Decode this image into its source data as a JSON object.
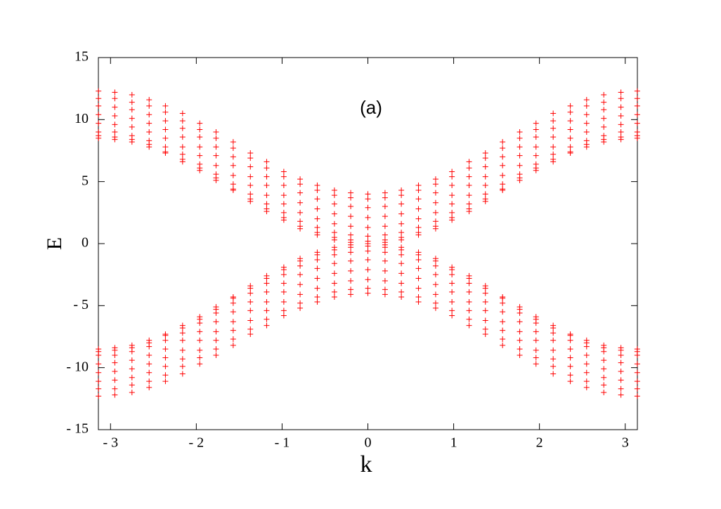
{
  "chart_data": {
    "type": "scatter",
    "annotation": "(a)",
    "xlabel": "k",
    "ylabel": "E",
    "xlim": [
      -3.14159,
      3.14159
    ],
    "ylim": [
      -15,
      15
    ],
    "xticks": [
      {
        "value": -3,
        "label": "- 3"
      },
      {
        "value": -2,
        "label": "- 2"
      },
      {
        "value": -1,
        "label": "- 1"
      },
      0,
      1,
      2,
      3
    ],
    "yticks": [
      {
        "value": -15,
        "label": "- 15"
      },
      {
        "value": -10,
        "label": "- 10"
      },
      {
        "value": -5,
        "label": "- 5"
      },
      0,
      5,
      10,
      15
    ],
    "x": [
      -3.14,
      -2.95,
      -2.75,
      -2.55,
      -2.36,
      -2.16,
      -1.96,
      -1.77,
      -1.57,
      -1.37,
      -1.18,
      -0.98,
      -0.79,
      -0.59,
      -0.39,
      -0.2,
      0,
      0.2,
      0.39,
      0.59,
      0.79,
      0.98,
      1.18,
      1.37,
      1.57,
      1.77,
      1.96,
      2.16,
      2.36,
      2.55,
      2.75,
      2.95,
      3.14
    ],
    "series": [
      {
        "color": "#ff0000",
        "values": [
          8.5,
          8.4,
          8.2,
          7.8,
          7.3,
          6.6,
          5.9,
          5.1,
          4.3,
          3.4,
          2.6,
          1.9,
          1.2,
          0.7,
          0.3,
          0.1,
          0,
          0.1,
          0.3,
          0.7,
          1.2,
          1.9,
          2.6,
          3.4,
          4.3,
          5.1,
          5.9,
          6.6,
          7.3,
          7.8,
          8.2,
          8.4,
          8.5
        ]
      },
      {
        "color": "#ff0000",
        "values": [
          8.7,
          8.6,
          8.4,
          8.0,
          7.4,
          6.8,
          6.1,
          5.3,
          4.4,
          3.6,
          2.8,
          2.1,
          1.4,
          0.9,
          0.5,
          0.3,
          0.2,
          0.3,
          0.5,
          0.9,
          1.4,
          2.1,
          2.8,
          3.6,
          4.4,
          5.3,
          6.1,
          6.8,
          7.4,
          8.0,
          8.4,
          8.6,
          8.7
        ]
      },
      {
        "color": "#ff0000",
        "values": [
          9.0,
          9.0,
          8.7,
          8.3,
          7.8,
          7.2,
          6.4,
          5.6,
          4.8,
          4.0,
          3.2,
          2.5,
          1.8,
          1.3,
          0.9,
          0.7,
          0.6,
          0.7,
          0.9,
          1.3,
          1.8,
          2.5,
          3.2,
          4.0,
          4.8,
          5.6,
          6.4,
          7.2,
          7.8,
          8.3,
          8.7,
          9.0,
          9.0
        ]
      },
      {
        "color": "#ff0000",
        "values": [
          9.7,
          9.6,
          9.4,
          9.0,
          8.5,
          7.8,
          7.1,
          6.3,
          5.5,
          4.7,
          3.9,
          3.2,
          2.5,
          2.0,
          1.6,
          1.4,
          1.3,
          1.4,
          1.6,
          2.0,
          2.5,
          3.2,
          3.9,
          4.7,
          5.5,
          6.3,
          7.1,
          7.8,
          8.5,
          9.0,
          9.4,
          9.6,
          9.7
        ]
      },
      {
        "color": "#ff0000",
        "values": [
          10.4,
          10.3,
          10.1,
          9.7,
          9.2,
          8.6,
          7.8,
          7.1,
          6.3,
          5.4,
          4.7,
          3.9,
          3.3,
          2.8,
          2.4,
          2.2,
          2.1,
          2.2,
          2.4,
          2.8,
          3.3,
          3.9,
          4.7,
          5.4,
          6.3,
          7.1,
          7.8,
          8.6,
          9.2,
          9.7,
          10.1,
          10.3,
          10.4
        ]
      },
      {
        "color": "#ff0000",
        "values": [
          11.1,
          11.0,
          10.8,
          10.4,
          9.9,
          9.3,
          8.6,
          7.8,
          7.0,
          6.2,
          5.4,
          4.7,
          4.1,
          3.6,
          3.2,
          3.0,
          2.9,
          3.0,
          3.2,
          3.6,
          4.1,
          4.7,
          5.4,
          6.2,
          7.0,
          7.8,
          8.6,
          9.3,
          9.9,
          10.4,
          10.8,
          11.0,
          11.1
        ]
      },
      {
        "color": "#ff0000",
        "values": [
          11.7,
          11.7,
          11.4,
          11.1,
          10.6,
          9.9,
          9.2,
          8.5,
          7.7,
          6.9,
          6.1,
          5.4,
          4.8,
          4.3,
          3.9,
          3.7,
          3.6,
          3.7,
          3.9,
          4.3,
          4.8,
          5.4,
          6.1,
          6.9,
          7.7,
          8.5,
          9.2,
          9.9,
          10.6,
          11.1,
          11.4,
          11.7,
          11.7
        ]
      },
      {
        "color": "#ff0000",
        "values": [
          12.3,
          12.2,
          12.0,
          11.6,
          11.1,
          10.5,
          9.7,
          9.0,
          8.2,
          7.3,
          6.6,
          5.8,
          5.2,
          4.7,
          4.3,
          4.1,
          4.0,
          4.1,
          4.3,
          4.7,
          5.2,
          5.8,
          6.6,
          7.3,
          8.2,
          9.0,
          9.7,
          10.5,
          11.1,
          11.6,
          12.0,
          12.2,
          12.3
        ]
      },
      {
        "color": "#ff0000",
        "values": [
          -8.5,
          -8.4,
          -8.2,
          -7.8,
          -7.3,
          -6.6,
          -5.9,
          -5.1,
          -4.3,
          -3.4,
          -2.6,
          -1.9,
          -1.2,
          -0.7,
          -0.3,
          -0.1,
          0,
          -0.1,
          -0.3,
          -0.7,
          -1.2,
          -1.9,
          -2.6,
          -3.4,
          -4.3,
          -5.1,
          -5.9,
          -6.6,
          -7.3,
          -7.8,
          -8.2,
          -8.4,
          -8.5
        ]
      },
      {
        "color": "#ff0000",
        "values": [
          -8.7,
          -8.6,
          -8.4,
          -8.0,
          -7.4,
          -6.8,
          -6.1,
          -5.3,
          -4.4,
          -3.6,
          -2.8,
          -2.1,
          -1.4,
          -0.9,
          -0.5,
          -0.3,
          -0.2,
          -0.3,
          -0.5,
          -0.9,
          -1.4,
          -2.1,
          -2.8,
          -3.6,
          -4.4,
          -5.3,
          -6.1,
          -6.8,
          -7.4,
          -8.0,
          -8.4,
          -8.6,
          -8.7
        ]
      },
      {
        "color": "#ff0000",
        "values": [
          -9.0,
          -9.0,
          -8.7,
          -8.3,
          -7.8,
          -7.2,
          -6.4,
          -5.6,
          -4.8,
          -4.0,
          -3.2,
          -2.5,
          -1.8,
          -1.3,
          -0.9,
          -0.7,
          -0.6,
          -0.7,
          -0.9,
          -1.3,
          -1.8,
          -2.5,
          -3.2,
          -4.0,
          -4.8,
          -5.6,
          -6.4,
          -7.2,
          -7.8,
          -8.3,
          -8.7,
          -9.0,
          -9.0
        ]
      },
      {
        "color": "#ff0000",
        "values": [
          -9.7,
          -9.6,
          -9.4,
          -9.0,
          -8.5,
          -7.8,
          -7.1,
          -6.3,
          -5.5,
          -4.7,
          -3.9,
          -3.2,
          -2.5,
          -2.0,
          -1.6,
          -1.4,
          -1.3,
          -1.4,
          -1.6,
          -2.0,
          -2.5,
          -3.2,
          -3.9,
          -4.7,
          -5.5,
          -6.3,
          -7.1,
          -7.8,
          -8.5,
          -9.0,
          -9.4,
          -9.6,
          -9.7
        ]
      },
      {
        "color": "#ff0000",
        "values": [
          -10.4,
          -10.3,
          -10.1,
          -9.7,
          -9.2,
          -8.6,
          -7.8,
          -7.1,
          -6.3,
          -5.4,
          -4.7,
          -3.9,
          -3.3,
          -2.8,
          -2.4,
          -2.2,
          -2.1,
          -2.2,
          -2.4,
          -2.8,
          -3.3,
          -3.9,
          -4.7,
          -5.4,
          -6.3,
          -7.1,
          -7.8,
          -8.6,
          -9.2,
          -9.7,
          -10.1,
          -10.3,
          -10.4
        ]
      },
      {
        "color": "#ff0000",
        "values": [
          -11.1,
          -11.0,
          -10.8,
          -10.4,
          -9.9,
          -9.3,
          -8.6,
          -7.8,
          -7.0,
          -6.2,
          -5.4,
          -4.7,
          -4.1,
          -3.6,
          -3.2,
          -3.0,
          -2.9,
          -3.0,
          -3.2,
          -3.6,
          -4.1,
          -4.7,
          -5.4,
          -6.2,
          -7.0,
          -7.8,
          -8.6,
          -9.3,
          -9.9,
          -10.4,
          -10.8,
          -11.0,
          -11.1
        ]
      },
      {
        "color": "#ff0000",
        "values": [
          -11.7,
          -11.7,
          -11.4,
          -11.1,
          -10.6,
          -9.9,
          -9.2,
          -8.5,
          -7.7,
          -6.9,
          -6.1,
          -5.4,
          -4.8,
          -4.3,
          -3.9,
          -3.7,
          -3.6,
          -3.7,
          -3.9,
          -4.3,
          -4.8,
          -5.4,
          -6.1,
          -6.9,
          -7.7,
          -8.5,
          -9.2,
          -9.9,
          -10.6,
          -11.1,
          -11.4,
          -11.7,
          -11.7
        ]
      },
      {
        "color": "#ff0000",
        "values": [
          -12.3,
          -12.2,
          -12.0,
          -11.6,
          -11.1,
          -10.5,
          -9.7,
          -9.0,
          -8.2,
          -7.3,
          -6.6,
          -5.8,
          -5.2,
          -4.7,
          -4.3,
          -4.1,
          -4.0,
          -4.1,
          -4.3,
          -4.7,
          -5.2,
          -5.8,
          -6.6,
          -7.3,
          -8.2,
          -9.0,
          -9.7,
          -10.5,
          -11.1,
          -11.6,
          -12.0,
          -12.2,
          -12.3
        ]
      }
    ]
  }
}
